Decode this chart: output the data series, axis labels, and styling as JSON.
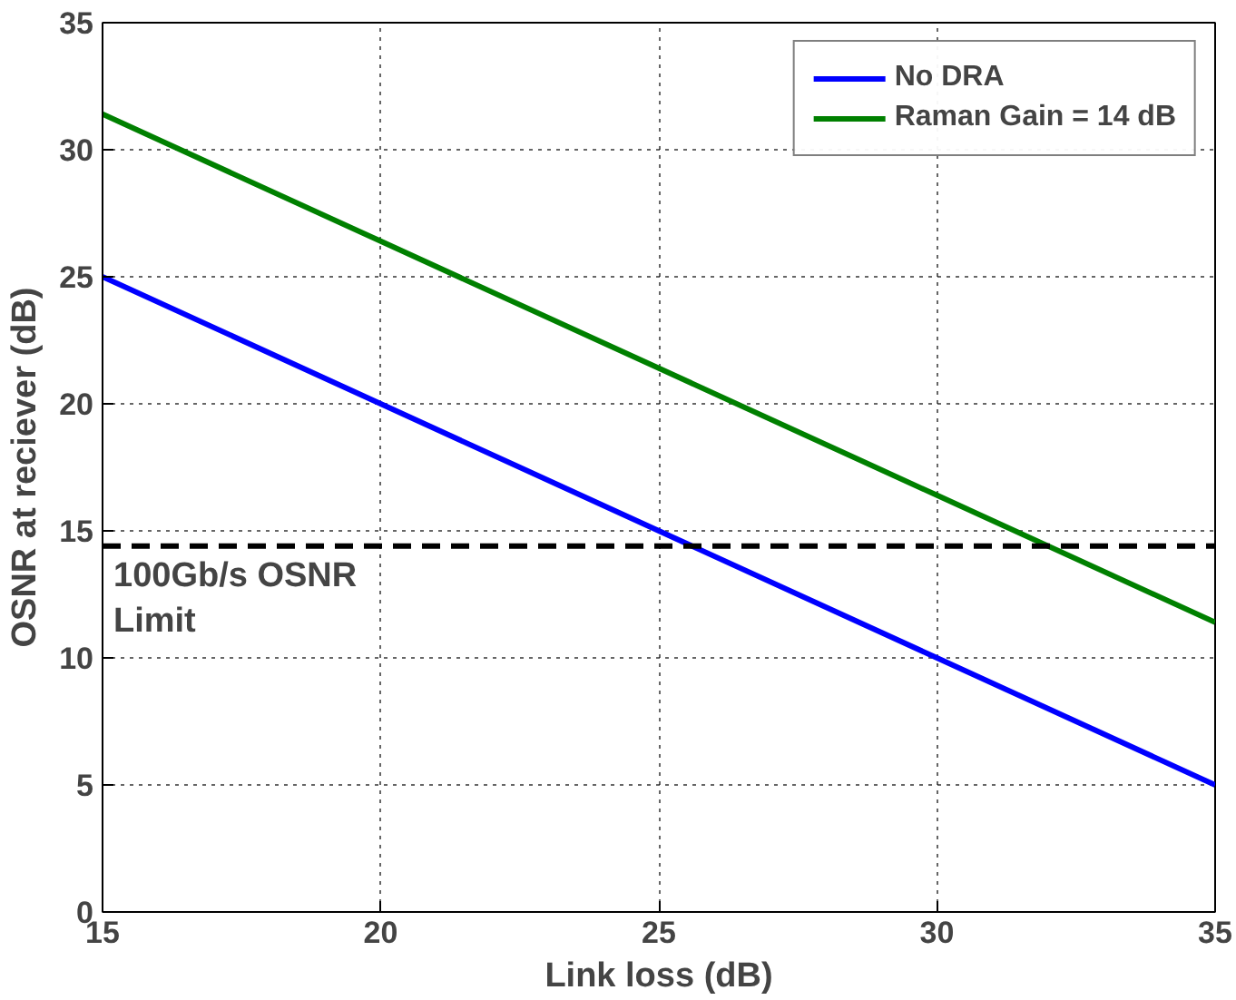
{
  "chart_data": {
    "type": "line",
    "xlabel": "Link loss (dB)",
    "ylabel": "OSNR at reciever (dB)",
    "x": [
      15,
      20,
      25,
      30,
      35
    ],
    "series": [
      {
        "name": "No DRA",
        "color": "#0000ff",
        "values": [
          25,
          20,
          15,
          10,
          5
        ]
      },
      {
        "name": "Raman Gain = 14 dB",
        "color": "#008000",
        "values": [
          31.4,
          26.4,
          21.4,
          16.4,
          11.4
        ]
      }
    ],
    "xlim": [
      15,
      35
    ],
    "ylim": [
      0,
      35
    ],
    "xticks": [
      15,
      20,
      25,
      30,
      35
    ],
    "yticks": [
      0,
      5,
      10,
      15,
      20,
      25,
      30,
      35
    ],
    "ref_lines": [
      {
        "axis": "y",
        "value": 14.4,
        "label": "100Gb/s OSNR Limit",
        "color": "#000000",
        "line_style": "dashed"
      }
    ],
    "grid": true,
    "legend": "top right",
    "line_style": "solid"
  }
}
